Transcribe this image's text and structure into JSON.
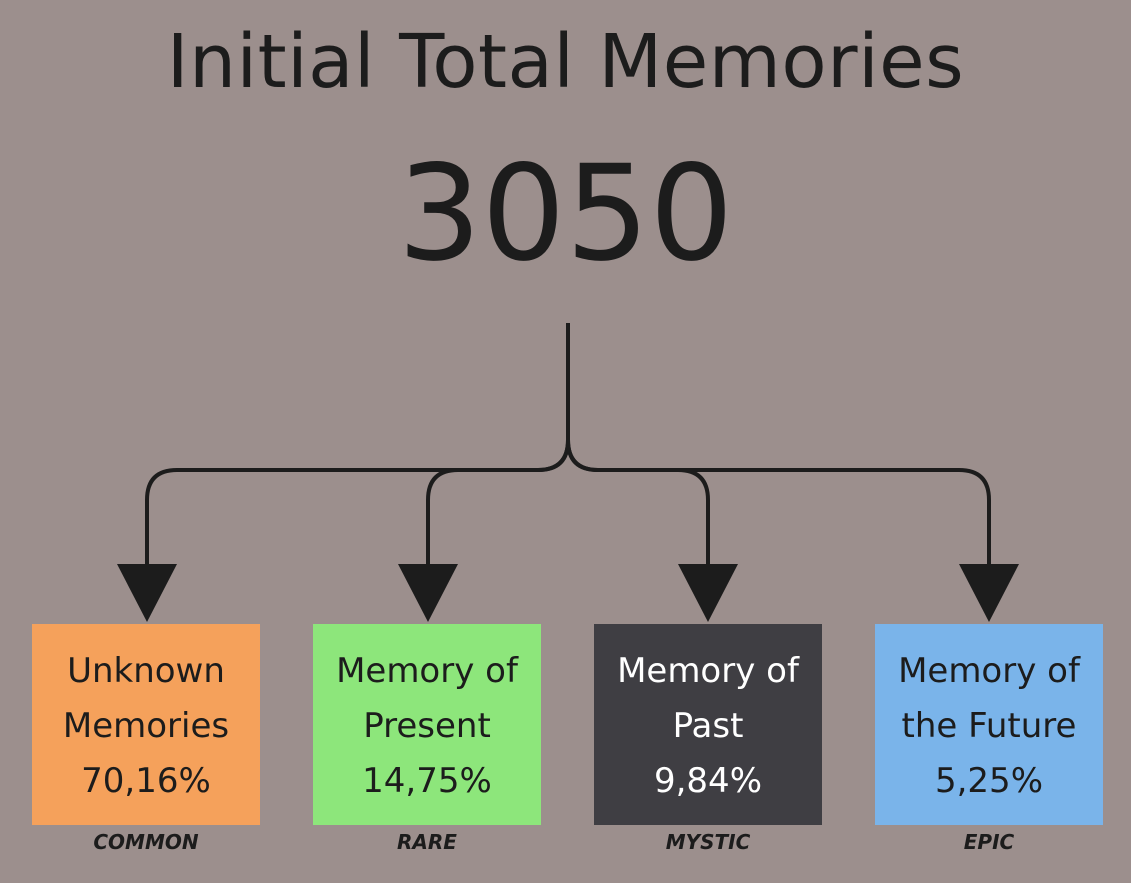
{
  "title": "Initial Total Memories",
  "total": "3050",
  "categories": [
    {
      "line1": "Unknown",
      "line2": "Memories",
      "percent": "70,16%",
      "rarity": "COMMON",
      "bg": "#f5a15b",
      "fg": "#1c1c1c"
    },
    {
      "line1": "Memory of",
      "line2": "Present",
      "percent": "14,75%",
      "rarity": "RARE",
      "bg": "#8de67b",
      "fg": "#1c1c1c"
    },
    {
      "line1": "Memory of",
      "line2": "Past",
      "percent": "9,84%",
      "rarity": "MYSTIC",
      "bg": "#3f3e43",
      "fg": "#ffffff"
    },
    {
      "line1": "Memory of",
      "line2": "the Future",
      "percent": "5,25%",
      "rarity": "EPIC",
      "bg": "#7ab4ea",
      "fg": "#1c1c1c"
    }
  ],
  "connector_color": "#1c1c1c"
}
